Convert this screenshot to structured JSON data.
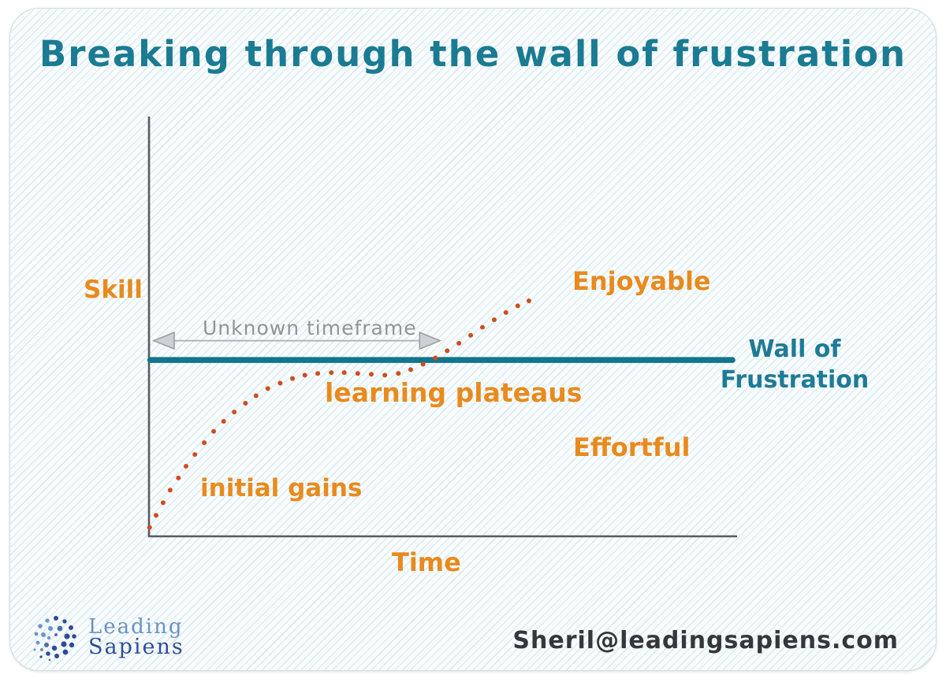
{
  "title": "Breaking through the wall of frustration",
  "colors": {
    "teal_accent": "#1a7b92",
    "wall_line": "#12758a",
    "orange_label": "#e98a1d",
    "curve_dot": "#d04d1d",
    "axis_gray": "#575c61",
    "annotation_gray": "#8e969b",
    "brand_light_blue": "#6b92c3",
    "brand_dark_blue": "#2e4e9a",
    "email_text": "#34383b"
  },
  "chart_data": {
    "type": "line",
    "title": "Breaking through the wall of frustration",
    "xlabel": "Time",
    "ylabel": "Skill",
    "x_range": [
      0,
      100
    ],
    "y_range": [
      0,
      100
    ],
    "grid": false,
    "legend": false,
    "style": "hand-drawn dotted skill curve; no numeric ticks (conceptual sketch)",
    "series": [
      {
        "name": "Skill over time",
        "marker": "dot",
        "color": "#d04d1d",
        "points": [
          [
            0.1,
            2.1
          ],
          [
            1.2,
            5.0
          ],
          [
            2.4,
            8.0
          ],
          [
            3.6,
            11.0
          ],
          [
            5.0,
            13.9
          ],
          [
            6.3,
            16.7
          ],
          [
            7.8,
            19.5
          ],
          [
            9.4,
            22.3
          ],
          [
            11.0,
            25.0
          ],
          [
            12.7,
            27.4
          ],
          [
            14.5,
            29.6
          ],
          [
            16.4,
            31.7
          ],
          [
            18.2,
            33.5
          ],
          [
            20.2,
            35.2
          ],
          [
            22.3,
            36.5
          ],
          [
            24.4,
            37.6
          ],
          [
            26.5,
            38.4
          ],
          [
            28.7,
            38.8
          ],
          [
            31.0,
            39.0
          ],
          [
            33.2,
            39.0
          ],
          [
            35.5,
            38.8
          ],
          [
            37.8,
            38.6
          ],
          [
            40.1,
            38.4
          ],
          [
            42.4,
            38.8
          ],
          [
            44.5,
            39.7
          ],
          [
            46.6,
            41.0
          ],
          [
            48.7,
            42.5
          ],
          [
            50.7,
            44.2
          ],
          [
            52.7,
            46.0
          ],
          [
            54.7,
            47.9
          ],
          [
            56.7,
            49.8
          ],
          [
            58.7,
            51.6
          ],
          [
            60.7,
            53.3
          ],
          [
            62.7,
            54.9
          ],
          [
            64.6,
            56.1
          ]
        ]
      }
    ],
    "wall_line": {
      "label": "Wall of Frustration",
      "skill_level": 42,
      "t_start": 0.2,
      "t_end": 99.2,
      "color": "#12758a"
    },
    "timeframe_arrow": {
      "label": "Unknown timeframe",
      "skill_level": 46.6,
      "t_start": 0.8,
      "t_end": 49.5,
      "style": "double-headed gray arrow"
    },
    "annotations": [
      {
        "text": "initial gains",
        "region": "early steep rise of curve"
      },
      {
        "text": "learning plateaus",
        "region": "flat middle section of curve"
      },
      {
        "text": "Enjoyable",
        "region": "above the wall line"
      },
      {
        "text": "Effortful",
        "region": "below the wall line"
      }
    ]
  },
  "labels": {
    "skill_axis": "Skill",
    "time_axis": "Time",
    "unknown_timeframe": "Unknown timeframe",
    "enjoyable": "Enjoyable",
    "effortful": "Effortful",
    "learning_plateaus": "learning plateaus",
    "initial_gains": "initial gains",
    "wall_line1": "Wall of",
    "wall_line2": "Frustration"
  },
  "footer": {
    "brand_line1": "Leading",
    "brand_line2": "Sapiens",
    "email": "Sheril@leadingsapiens.com"
  }
}
